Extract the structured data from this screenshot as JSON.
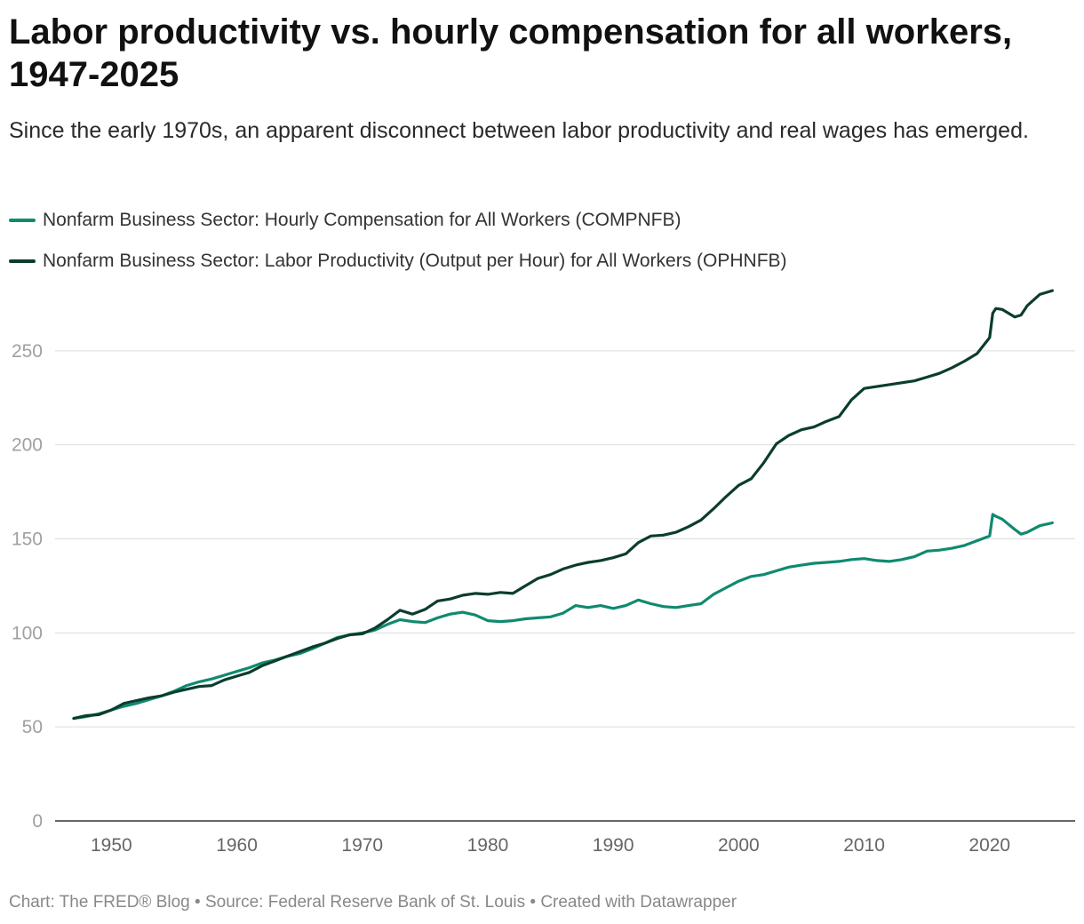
{
  "title": "Labor productivity vs. hourly compensation for all workers, 1947-2025",
  "subtitle": "Since the early 1970s, an apparent disconnect between labor productivity and real wages has emerged.",
  "footer": {
    "chart_credit": "Chart: The FRED® Blog",
    "source": "Source: Federal Reserve Bank of St. Louis",
    "created_with": "Created with Datawrapper",
    "separator": " • "
  },
  "colors": {
    "compensation": "#0f8a70",
    "productivity": "#0b3d2e",
    "gridline": "#dddddd",
    "axis": "#333333"
  },
  "chart_data": {
    "type": "line",
    "title": "Labor productivity vs. hourly compensation for all workers, 1947-2025",
    "xlabel": "",
    "ylabel": "",
    "xlim": [
      1947,
      2025.5
    ],
    "ylim": [
      0,
      280
    ],
    "x_ticks": [
      1950,
      1960,
      1970,
      1980,
      1990,
      2000,
      2010,
      2020
    ],
    "y_ticks": [
      0,
      50,
      100,
      150,
      200,
      250
    ],
    "grid": "horizontal",
    "legend_position": "top",
    "series": [
      {
        "name": "Nonfarm Business Sector: Hourly Compensation for All Workers (COMPNFB)",
        "key": "compensation",
        "x": [
          1947,
          1948,
          1949,
          1950,
          1951,
          1952,
          1953,
          1954,
          1955,
          1956,
          1957,
          1958,
          1959,
          1960,
          1961,
          1962,
          1963,
          1964,
          1965,
          1966,
          1967,
          1968,
          1969,
          1970,
          1971,
          1972,
          1973,
          1974,
          1975,
          1976,
          1977,
          1978,
          1979,
          1980,
          1981,
          1982,
          1983,
          1984,
          1985,
          1986,
          1987,
          1988,
          1989,
          1990,
          1991,
          1992,
          1993,
          1994,
          1995,
          1996,
          1997,
          1998,
          1999,
          2000,
          2001,
          2002,
          2003,
          2004,
          2005,
          2006,
          2007,
          2008,
          2009,
          2010,
          2011,
          2012,
          2013,
          2014,
          2015,
          2016,
          2017,
          2018,
          2019,
          2020,
          2020.25,
          2020.5,
          2021,
          2022,
          2022.5,
          2023,
          2024,
          2025
        ],
        "y": [
          54.5,
          55.5,
          57,
          59,
          61,
          62.5,
          64.5,
          66.5,
          69,
          72,
          74,
          75.5,
          77.5,
          79.5,
          81.5,
          84,
          85.5,
          87.5,
          89,
          91.5,
          94.5,
          97.5,
          99,
          100,
          101.5,
          104.5,
          107,
          106,
          105.5,
          108,
          110,
          111,
          109.5,
          106.5,
          106,
          106.5,
          107.5,
          108,
          108.5,
          110.5,
          114.5,
          113.5,
          114.5,
          113,
          114.5,
          117.5,
          115.5,
          114,
          113.5,
          114.5,
          115.5,
          120.5,
          124,
          127.5,
          130,
          131,
          133,
          135,
          136,
          137,
          137.5,
          138,
          139,
          139.5,
          138.5,
          138,
          139,
          140.5,
          143.5,
          144,
          145,
          146.5,
          149,
          151.5,
          163,
          162,
          160.5,
          155,
          152.5,
          153.5,
          157,
          158.5
        ]
      },
      {
        "name": "Nonfarm Business Sector: Labor Productivity (Output per Hour) for All Workers (OPHNFB)",
        "key": "productivity",
        "x": [
          1947,
          1948,
          1949,
          1950,
          1951,
          1952,
          1953,
          1954,
          1955,
          1956,
          1957,
          1958,
          1959,
          1960,
          1961,
          1962,
          1963,
          1964,
          1965,
          1966,
          1967,
          1968,
          1969,
          1970,
          1971,
          1972,
          1973,
          1974,
          1975,
          1976,
          1977,
          1978,
          1979,
          1980,
          1981,
          1982,
          1983,
          1984,
          1985,
          1986,
          1987,
          1988,
          1989,
          1990,
          1991,
          1992,
          1993,
          1994,
          1995,
          1996,
          1997,
          1998,
          1999,
          2000,
          2001,
          2002,
          2003,
          2004,
          2005,
          2006,
          2007,
          2008,
          2009,
          2010,
          2011,
          2012,
          2013,
          2014,
          2015,
          2016,
          2017,
          2018,
          2019,
          2020,
          2020.25,
          2020.5,
          2021,
          2022,
          2022.5,
          2023,
          2024,
          2025
        ],
        "y": [
          54.5,
          56,
          56.5,
          59,
          62.5,
          64,
          65.5,
          66.5,
          68.5,
          70,
          71.5,
          72,
          75,
          77,
          79,
          82.5,
          85,
          87.5,
          90,
          92.5,
          94.5,
          97,
          99,
          99.5,
          102.5,
          107,
          112,
          110,
          112.5,
          117,
          118,
          120,
          121,
          120.5,
          121.5,
          121,
          125,
          129,
          131,
          134,
          136,
          137.5,
          138.5,
          140,
          142,
          148,
          151.5,
          152,
          153.5,
          156.5,
          160,
          166,
          172.5,
          178.5,
          182,
          190.5,
          200.5,
          205,
          208,
          209.5,
          212.5,
          215,
          224,
          230,
          231,
          232,
          233,
          234,
          236,
          238,
          241,
          244.5,
          248.5,
          257,
          270,
          272.5,
          272,
          268,
          269,
          274,
          280,
          282
        ]
      }
    ]
  }
}
